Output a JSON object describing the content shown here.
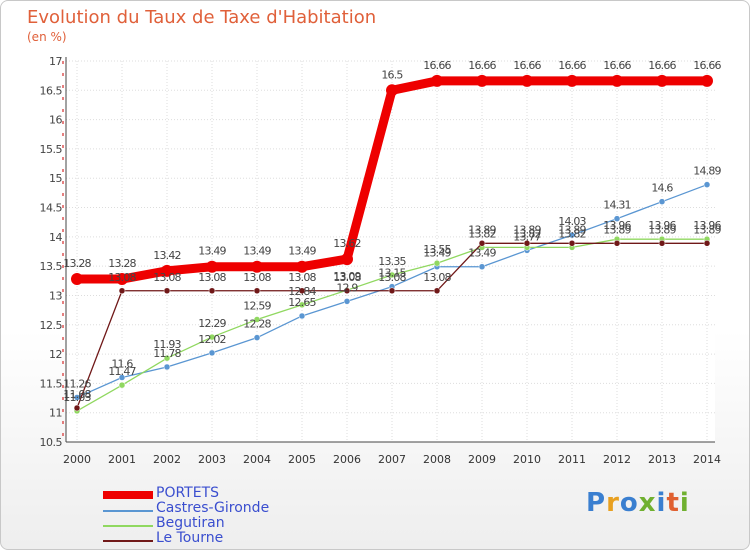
{
  "title": "Evolution du Taux de Taxe d'Habitation",
  "subtitle": "(en %)",
  "logo": {
    "text": "Proxiti",
    "colors": [
      "#3a7fd0",
      "#e8a020",
      "#3a7fd0",
      "#70b030",
      "#3a7fd0",
      "#e06030",
      "#70b030"
    ]
  },
  "chart_data": {
    "type": "line",
    "title": "Evolution du Taux de Taxe d'Habitation",
    "ylabel": "(en %)",
    "xlabel": "",
    "ylim": [
      10.5,
      17
    ],
    "yticks": [
      "10.5",
      "11",
      "11.5",
      "12",
      "12.5",
      "13",
      "13.5",
      "14",
      "14.5",
      "15",
      "15.5",
      "16",
      "16.5",
      "17"
    ],
    "categories": [
      "2000",
      "2001",
      "2002",
      "2003",
      "2004",
      "2005",
      "2006",
      "2007",
      "2008",
      "2009",
      "2010",
      "2011",
      "2012",
      "2013",
      "2014"
    ],
    "grid": true,
    "legend_position": "bottom-left",
    "series": [
      {
        "name": "PORTETS",
        "color": "#ee0000",
        "values": [
          13.28,
          13.28,
          13.42,
          13.49,
          13.49,
          13.49,
          13.62,
          16.5,
          16.66,
          16.66,
          16.66,
          16.66,
          16.66,
          16.66,
          16.66
        ],
        "labels": [
          "13.28",
          "13.28",
          "13.42",
          "13.49",
          "13.49",
          "13.49",
          "13.62",
          "16.5",
          "16.66",
          "16.66",
          "16.66",
          "16.66",
          "16.66",
          "16.66",
          "16.66"
        ]
      },
      {
        "name": "Castres-Gironde",
        "color": "#5a96d2",
        "values": [
          11.26,
          11.6,
          11.78,
          12.02,
          12.28,
          12.65,
          12.9,
          13.15,
          13.49,
          13.49,
          13.77,
          14.03,
          14.31,
          14.6,
          14.89
        ],
        "labels": [
          "11.26",
          "11.6",
          "11.78",
          "12.02",
          "12.28",
          "12.65",
          "12.9",
          "13.15",
          "13.49",
          "13.49",
          "13.77",
          "14.03",
          "14.31",
          "14.6",
          "14.89"
        ]
      },
      {
        "name": "Begutiran",
        "color": "#90d860",
        "values": [
          11.03,
          11.47,
          11.93,
          12.29,
          12.59,
          12.84,
          13.09,
          13.35,
          13.55,
          13.82,
          13.82,
          13.82,
          13.96,
          13.96,
          13.96
        ],
        "labels": [
          "11.03",
          "11.47",
          "11.93",
          "12.29",
          "12.59",
          "12.84",
          "13.09",
          "13.35",
          "13.55",
          "13.82",
          "13.82",
          "13.82",
          "13.96",
          "13.96",
          "13.96"
        ]
      },
      {
        "name": "Le Tourne",
        "color": "#701818",
        "values": [
          11.08,
          13.08,
          13.08,
          13.08,
          13.08,
          13.08,
          13.08,
          13.08,
          13.08,
          13.89,
          13.89,
          13.89,
          13.89,
          13.89,
          13.89
        ],
        "labels": [
          "11.08",
          "13.08",
          "13.08",
          "13.08",
          "13.08",
          "13.08",
          "13.08",
          "13.08",
          "13.08",
          "13.89",
          "13.89",
          "13.89",
          "13.89",
          "13.89",
          "13.89"
        ]
      }
    ]
  }
}
